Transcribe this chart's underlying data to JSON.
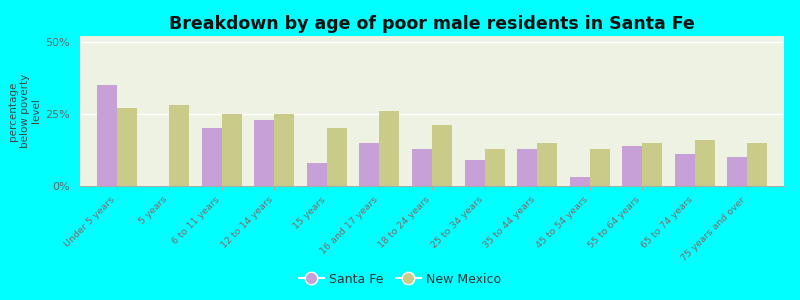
{
  "title": "Breakdown by age of poor male residents in Santa Fe",
  "categories": [
    "Under 5 years",
    "5 years",
    "6 to 11 years",
    "12 to 14 years",
    "15 years",
    "16 and 17 years",
    "18 to 24 years",
    "25 to 34 years",
    "35 to 44 years",
    "45 to 54 years",
    "55 to 64 years",
    "65 to 74 years",
    "75 years and over"
  ],
  "santa_fe": [
    35,
    0,
    20,
    23,
    8,
    15,
    13,
    9,
    13,
    3,
    14,
    11,
    10
  ],
  "new_mexico": [
    27,
    28,
    25,
    25,
    20,
    26,
    21,
    13,
    15,
    13,
    15,
    16,
    15
  ],
  "santa_fe_color": "#c8a0d8",
  "new_mexico_color": "#c8cc88",
  "background_color": "#00ffff",
  "plot_bg": "#eef2e2",
  "ylabel": "percentage\nbelow poverty\nlevel",
  "ylim": [
    0,
    52
  ],
  "yticks": [
    0,
    25,
    50
  ],
  "ytick_labels": [
    "0%",
    "25%",
    "50%"
  ],
  "bar_width": 0.38,
  "legend_santa_fe": "Santa Fe",
  "legend_new_mexico": "New Mexico",
  "xtick_color": "#886666",
  "ytick_color": "#666666"
}
